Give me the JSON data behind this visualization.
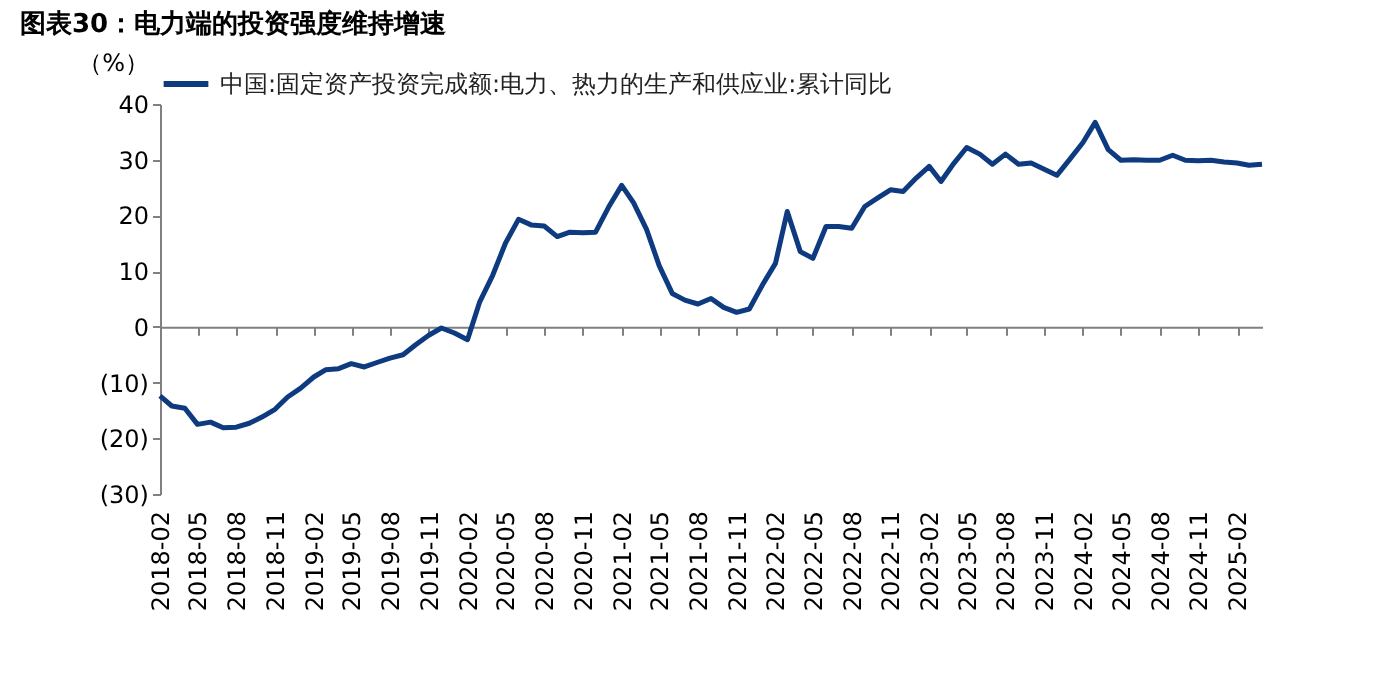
{
  "chart_data": {
    "type": "line",
    "title": "图表30：电力端的投资强度维持增速",
    "ylabel": "（%）",
    "x": [
      "2018-02",
      "2018-03",
      "2018-04",
      "2018-05",
      "2018-06",
      "2018-07",
      "2018-08",
      "2018-09",
      "2018-10",
      "2018-11",
      "2018-12",
      "2019-01",
      "2019-02",
      "2019-03",
      "2019-04",
      "2019-05",
      "2019-06",
      "2019-07",
      "2019-08",
      "2019-09",
      "2019-10",
      "2019-11",
      "2019-12",
      "2020-01",
      "2020-02",
      "2020-03",
      "2020-04",
      "2020-05",
      "2020-06",
      "2020-07",
      "2020-08",
      "2020-09",
      "2020-10",
      "2020-11",
      "2020-12",
      "2021-01",
      "2021-02",
      "2021-03",
      "2021-04",
      "2021-05",
      "2021-06",
      "2021-07",
      "2021-08",
      "2021-09",
      "2021-10",
      "2021-11",
      "2021-12",
      "2022-01",
      "2022-02",
      "2022-03",
      "2022-04",
      "2022-05",
      "2022-06",
      "2022-07",
      "2022-08",
      "2022-09",
      "2022-10",
      "2022-11",
      "2022-12",
      "2023-01",
      "2023-02",
      "2023-03",
      "2023-04",
      "2023-05",
      "2023-06",
      "2023-07",
      "2023-08",
      "2023-09",
      "2023-10",
      "2023-11",
      "2023-12",
      "2024-01",
      "2024-02",
      "2024-03",
      "2024-04",
      "2024-05",
      "2024-06",
      "2024-07",
      "2024-08",
      "2024-09",
      "2024-10",
      "2024-11",
      "2024-12",
      "2025-01",
      "2025-02",
      "2025-03",
      "2025-04"
    ],
    "series": [
      {
        "name": "中国:固定资产投资完成额:电力、热力的生产和供应业:累计同比",
        "color": "#0e3a80",
        "values": [
          -12.4,
          -14.2,
          -14.6,
          -17.5,
          -17.1,
          -18.1,
          -18,
          -17.3,
          -16.2,
          -14.8,
          -12.6,
          -11,
          -9,
          -7.7,
          -7.5,
          -6.6,
          -7.2,
          -6.4,
          -5.6,
          -5,
          -3.2,
          -1.5,
          -0.2,
          -1.1,
          -2.3,
          4.5,
          9.3,
          15,
          19.3,
          18.3,
          18.1,
          16.2,
          17,
          16.9,
          17,
          21.5,
          25.4,
          22.3,
          17.5,
          11,
          6,
          4.8,
          4.1,
          5.1,
          3.5,
          2.6,
          3.2,
          7.5,
          11.4,
          20.7,
          13.5,
          12.3,
          18,
          18,
          17.7,
          21.6,
          23.1,
          24.6,
          24.3,
          26.7,
          28.8,
          26.1,
          29.4,
          32.2,
          31,
          29.2,
          31,
          29.2,
          29.4,
          28.3,
          27.2,
          30.1,
          33.1,
          36.7,
          31.8,
          29.9,
          30,
          29.9,
          29.9,
          30.8,
          29.9,
          29.8,
          29.9,
          29.6,
          29.4,
          29,
          29.2
        ]
      }
    ],
    "xlim": [
      "2018-02",
      "2025-04"
    ],
    "xticks": [
      "2018-02",
      "2018-05",
      "2018-08",
      "2018-11",
      "2019-02",
      "2019-05",
      "2019-08",
      "2019-11",
      "2020-02",
      "2020-05",
      "2020-08",
      "2020-11",
      "2021-02",
      "2021-05",
      "2021-08",
      "2021-11",
      "2022-02",
      "2022-05",
      "2022-08",
      "2022-11",
      "2023-02",
      "2023-05",
      "2023-08",
      "2023-11",
      "2024-02",
      "2024-05",
      "2024-08",
      "2024-11",
      "2025-02"
    ],
    "ylim": [
      -30,
      40
    ],
    "yticks": [
      {
        "value": -30,
        "label": "(30)"
      },
      {
        "value": -20,
        "label": "(20)"
      },
      {
        "value": -10,
        "label": "(10)"
      },
      0,
      10,
      20,
      30,
      40
    ],
    "legend": "top",
    "marker": "none",
    "line_style": "solid"
  }
}
